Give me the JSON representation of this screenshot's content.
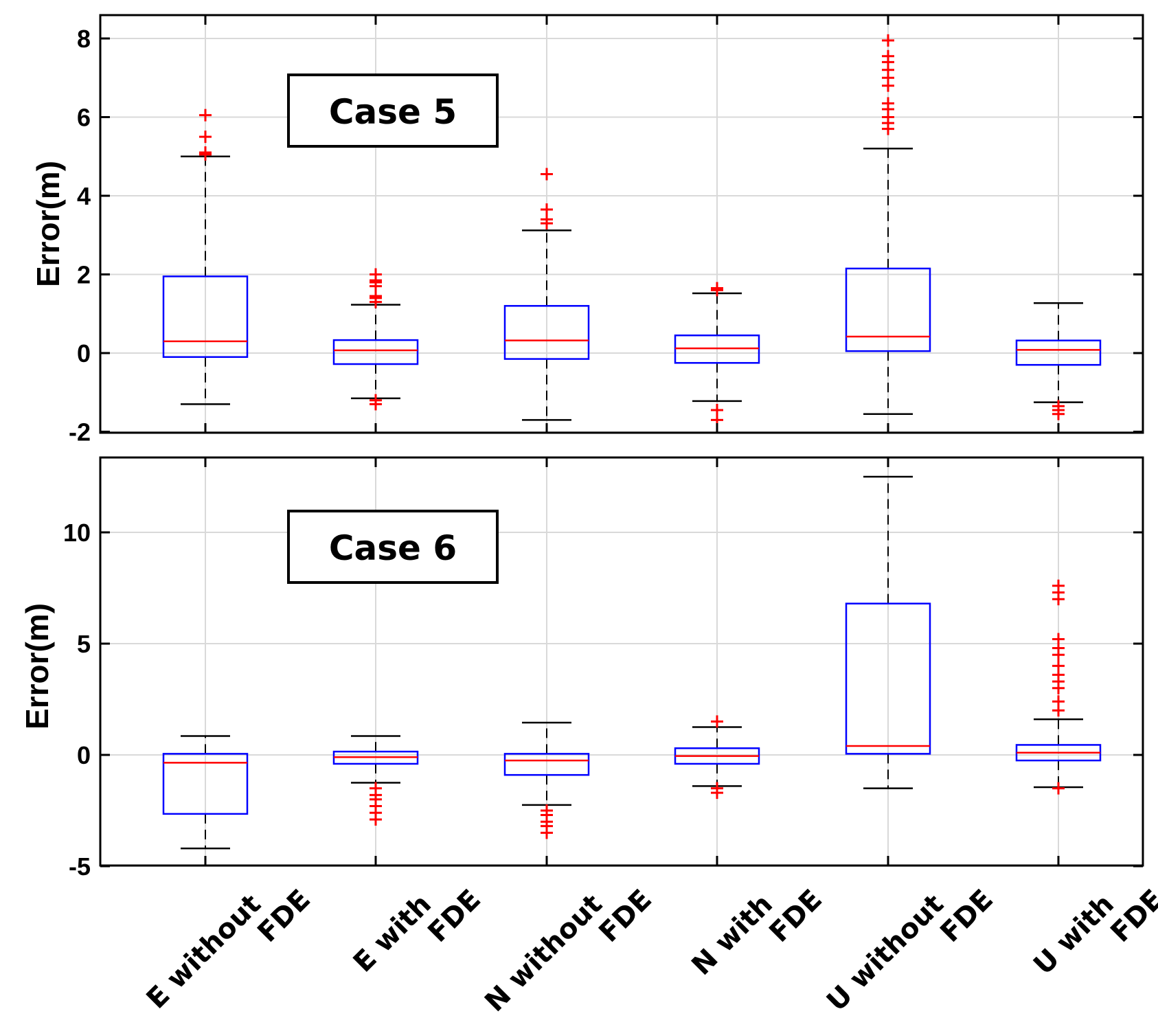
{
  "chart_data": [
    {
      "type": "box",
      "annotation": "Case 5",
      "ylabel": "Error(m)",
      "ylim": [
        -2.1,
        8.5
      ],
      "yticks": [
        -2,
        0,
        2,
        4,
        6,
        8
      ],
      "ytick_labels": [
        "-2",
        "0",
        "2",
        "4",
        "6",
        "8"
      ],
      "grid": true,
      "categories": [
        "E without FDE",
        "E with FDE",
        "N without FDE",
        "N with FDE",
        "U without FDE",
        "U with FDE"
      ],
      "boxes": [
        {
          "whislo": -1.3,
          "q1": -0.1,
          "med": 0.3,
          "q3": 1.95,
          "whishi": 5.0,
          "fliers": [
            5.05,
            5.1,
            5.5,
            6.05
          ]
        },
        {
          "whislo": -1.15,
          "q1": -0.28,
          "med": 0.07,
          "q3": 0.33,
          "whishi": 1.23,
          "fliers": [
            -1.3,
            -1.2,
            1.3,
            1.4,
            1.45,
            1.7,
            1.8,
            1.85,
            2.0
          ]
        },
        {
          "whislo": -1.7,
          "q1": -0.15,
          "med": 0.32,
          "q3": 1.2,
          "whishi": 3.12,
          "fliers": [
            3.3,
            3.4,
            3.65,
            4.55
          ]
        },
        {
          "whislo": -1.22,
          "q1": -0.25,
          "med": 0.12,
          "q3": 0.45,
          "whishi": 1.52,
          "fliers": [
            -1.7,
            -1.45,
            1.6,
            1.65
          ]
        },
        {
          "whislo": -1.55,
          "q1": 0.05,
          "med": 0.42,
          "q3": 2.15,
          "whishi": 5.2,
          "fliers": [
            5.7,
            5.85,
            6.0,
            6.2,
            6.35,
            6.8,
            7.0,
            7.2,
            7.4,
            7.55,
            7.95
          ]
        },
        {
          "whislo": -1.25,
          "q1": -0.3,
          "med": 0.08,
          "q3": 0.32,
          "whishi": 1.27,
          "fliers": [
            -1.55,
            -1.45,
            -1.35
          ]
        }
      ]
    },
    {
      "type": "box",
      "annotation": "Case 6",
      "ylabel": "Error(m)",
      "ylim": [
        -5,
        12.8
      ],
      "yticks": [
        -5,
        0,
        5,
        10
      ],
      "ytick_labels": [
        "-5",
        "0",
        "5",
        "10"
      ],
      "grid": true,
      "categories": [
        "E without FDE",
        "E with FDE",
        "N without FDE",
        "N with FDE",
        "U without FDE",
        "U with FDE"
      ],
      "boxes": [
        {
          "whislo": -4.2,
          "q1": -2.65,
          "med": -0.35,
          "q3": 0.05,
          "whishi": 0.85,
          "fliers": []
        },
        {
          "whislo": -1.25,
          "q1": -0.4,
          "med": -0.1,
          "q3": 0.15,
          "whishi": 0.85,
          "fliers": [
            -1.5,
            -1.8,
            -2.0,
            -2.3,
            -2.6,
            -2.9
          ]
        },
        {
          "whislo": -2.25,
          "q1": -0.9,
          "med": -0.25,
          "q3": 0.05,
          "whishi": 1.45,
          "fliers": [
            -2.5,
            -2.7,
            -3.0,
            -3.2,
            -3.5
          ]
        },
        {
          "whislo": -1.4,
          "q1": -0.4,
          "med": -0.05,
          "q3": 0.3,
          "whishi": 1.25,
          "fliers": [
            -1.7,
            -1.5,
            1.5
          ]
        },
        {
          "whislo": -1.5,
          "q1": 0.05,
          "med": 0.4,
          "q3": 6.8,
          "whishi": 12.5,
          "fliers": []
        },
        {
          "whislo": -1.45,
          "q1": -0.25,
          "med": 0.1,
          "q3": 0.45,
          "whishi": 1.6,
          "fliers": [
            -1.5,
            2.0,
            2.4,
            3.0,
            3.3,
            3.6,
            4.0,
            4.5,
            4.8,
            5.2,
            7.0,
            7.3,
            7.6
          ]
        }
      ]
    }
  ]
}
